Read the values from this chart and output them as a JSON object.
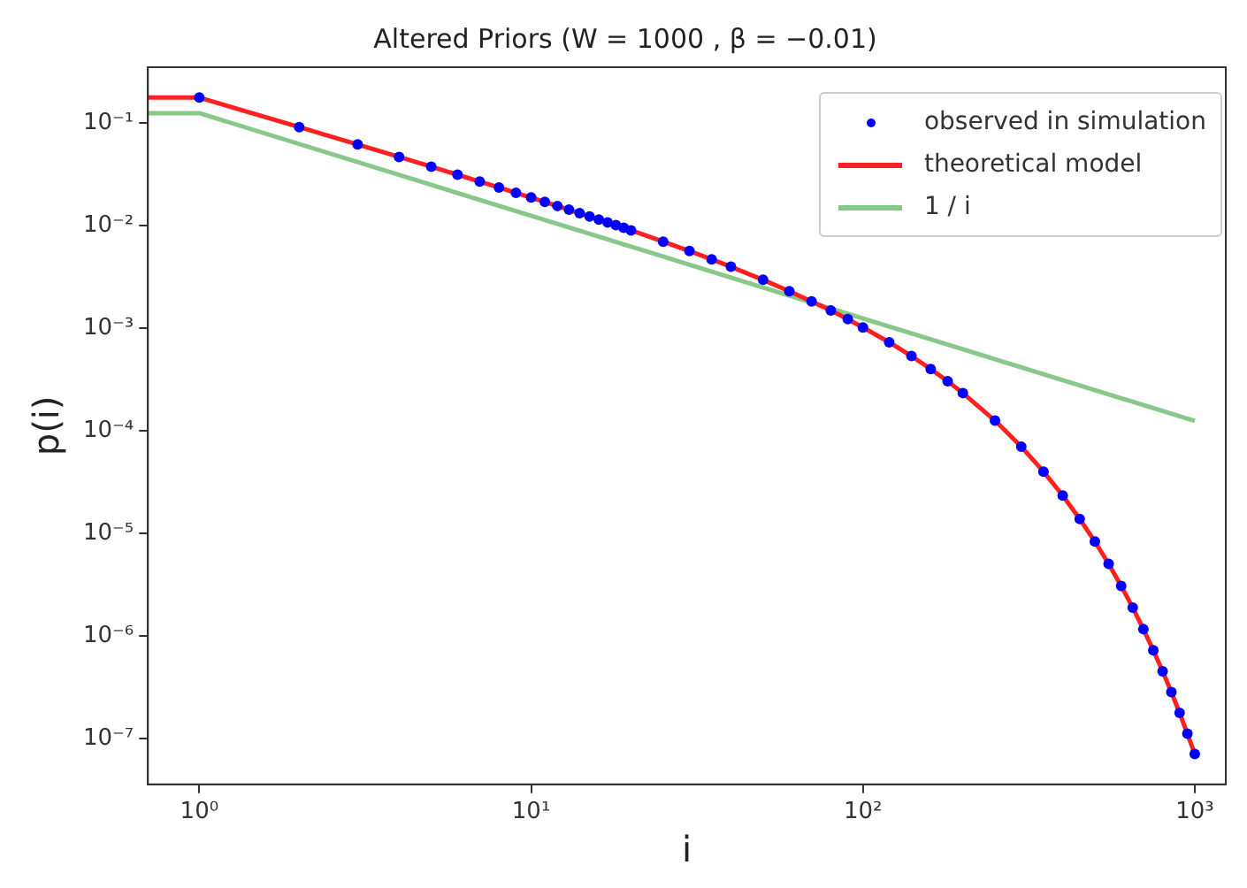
{
  "chart_data": {
    "type": "line",
    "title": "Altered Priors (W = 1000 , β = −0.01)",
    "xlabel": "i",
    "ylabel": "p(i)",
    "log": "xy",
    "grid": false,
    "legend": "top right",
    "xlim": [
      0.7,
      1240
    ],
    "ylim": [
      3.6e-08,
      0.35
    ],
    "xticks": [
      {
        "value": 1,
        "label": "10⁰"
      },
      {
        "value": 10,
        "label": "10¹"
      },
      {
        "value": 100,
        "label": "10²"
      },
      {
        "value": 1000,
        "label": "10³"
      }
    ],
    "yticks": [
      {
        "value": 1e-07,
        "label": "10⁻⁷"
      },
      {
        "value": 1e-06,
        "label": "10⁻⁶"
      },
      {
        "value": 1e-05,
        "label": "10⁻⁵"
      },
      {
        "value": 0.0001,
        "label": "10⁻⁴"
      },
      {
        "value": 0.001,
        "label": "10⁻³"
      },
      {
        "value": 0.01,
        "label": "10⁻²"
      },
      {
        "value": 0.1,
        "label": "10⁻¹"
      }
    ],
    "series": [
      {
        "name": "observed in simulation",
        "type": "scatter",
        "marker": "circle",
        "color": "#0000ff",
        "x": [
          1,
          2,
          3,
          4,
          5,
          6,
          7,
          8,
          9,
          10,
          11,
          12,
          13,
          14,
          15,
          16,
          17,
          18,
          19,
          20,
          25,
          30,
          35,
          40,
          50,
          60,
          70,
          80,
          90,
          100,
          120,
          140,
          160,
          180,
          200,
          250,
          300,
          350,
          400,
          450,
          500,
          550,
          600,
          650,
          700,
          750,
          800,
          850,
          900,
          950,
          1000
        ],
        "values": [
          0.177,
          0.0914,
          0.0619,
          0.0468,
          0.0376,
          0.0314,
          0.0269,
          0.0236,
          0.0209,
          0.0188,
          0.01703,
          0.01556,
          0.01431,
          0.01324,
          0.01231,
          0.01148,
          0.01076,
          0.01012,
          0.00953,
          0.00901,
          0.007,
          0.00566,
          0.0047,
          0.00398,
          0.00297,
          0.0023,
          0.00183,
          0.00149,
          0.00123,
          0.00102,
          0.000731,
          0.000537,
          0.000401,
          0.000305,
          0.000234,
          0.000126,
          7.02e-05,
          4.02e-05,
          2.35e-05,
          1.39e-05,
          8.36e-06,
          5.07e-06,
          3.09e-06,
          1.9e-06,
          1.17e-06,
          7.29e-07,
          4.55e-07,
          2.85e-07,
          1.79e-07,
          1.12e-07,
          7.1e-08
        ]
      },
      {
        "name": "theoretical model",
        "marker": "none",
        "color": "#ff2020",
        "x": [
          0.7,
          1,
          2,
          3,
          4,
          5,
          6,
          7,
          8,
          9,
          10,
          12,
          14,
          16,
          18,
          20,
          25,
          30,
          35,
          40,
          50,
          60,
          70,
          80,
          90,
          100,
          120,
          140,
          160,
          180,
          200,
          250,
          300,
          350,
          400,
          450,
          500,
          550,
          600,
          650,
          700,
          750,
          800,
          850,
          900,
          950,
          1000
        ],
        "values": [
          0.177,
          0.177,
          0.0914,
          0.0619,
          0.0468,
          0.0376,
          0.0314,
          0.0269,
          0.0236,
          0.0209,
          0.0188,
          0.01556,
          0.01324,
          0.01148,
          0.01012,
          0.00901,
          0.007,
          0.00566,
          0.0047,
          0.00398,
          0.00297,
          0.0023,
          0.00183,
          0.00149,
          0.00123,
          0.00102,
          0.000731,
          0.000537,
          0.000401,
          0.000305,
          0.000234,
          0.000126,
          7.02e-05,
          4.02e-05,
          2.35e-05,
          1.39e-05,
          8.36e-06,
          5.07e-06,
          3.09e-06,
          1.9e-06,
          1.17e-06,
          7.29e-07,
          4.55e-07,
          2.85e-07,
          1.79e-07,
          1.12e-07,
          7.1e-08
        ]
      },
      {
        "name": "1 / i",
        "marker": "none",
        "color": "#88c888",
        "x": [
          0.7,
          1,
          1000
        ],
        "values": [
          0.125,
          0.125,
          0.000125
        ]
      }
    ]
  }
}
